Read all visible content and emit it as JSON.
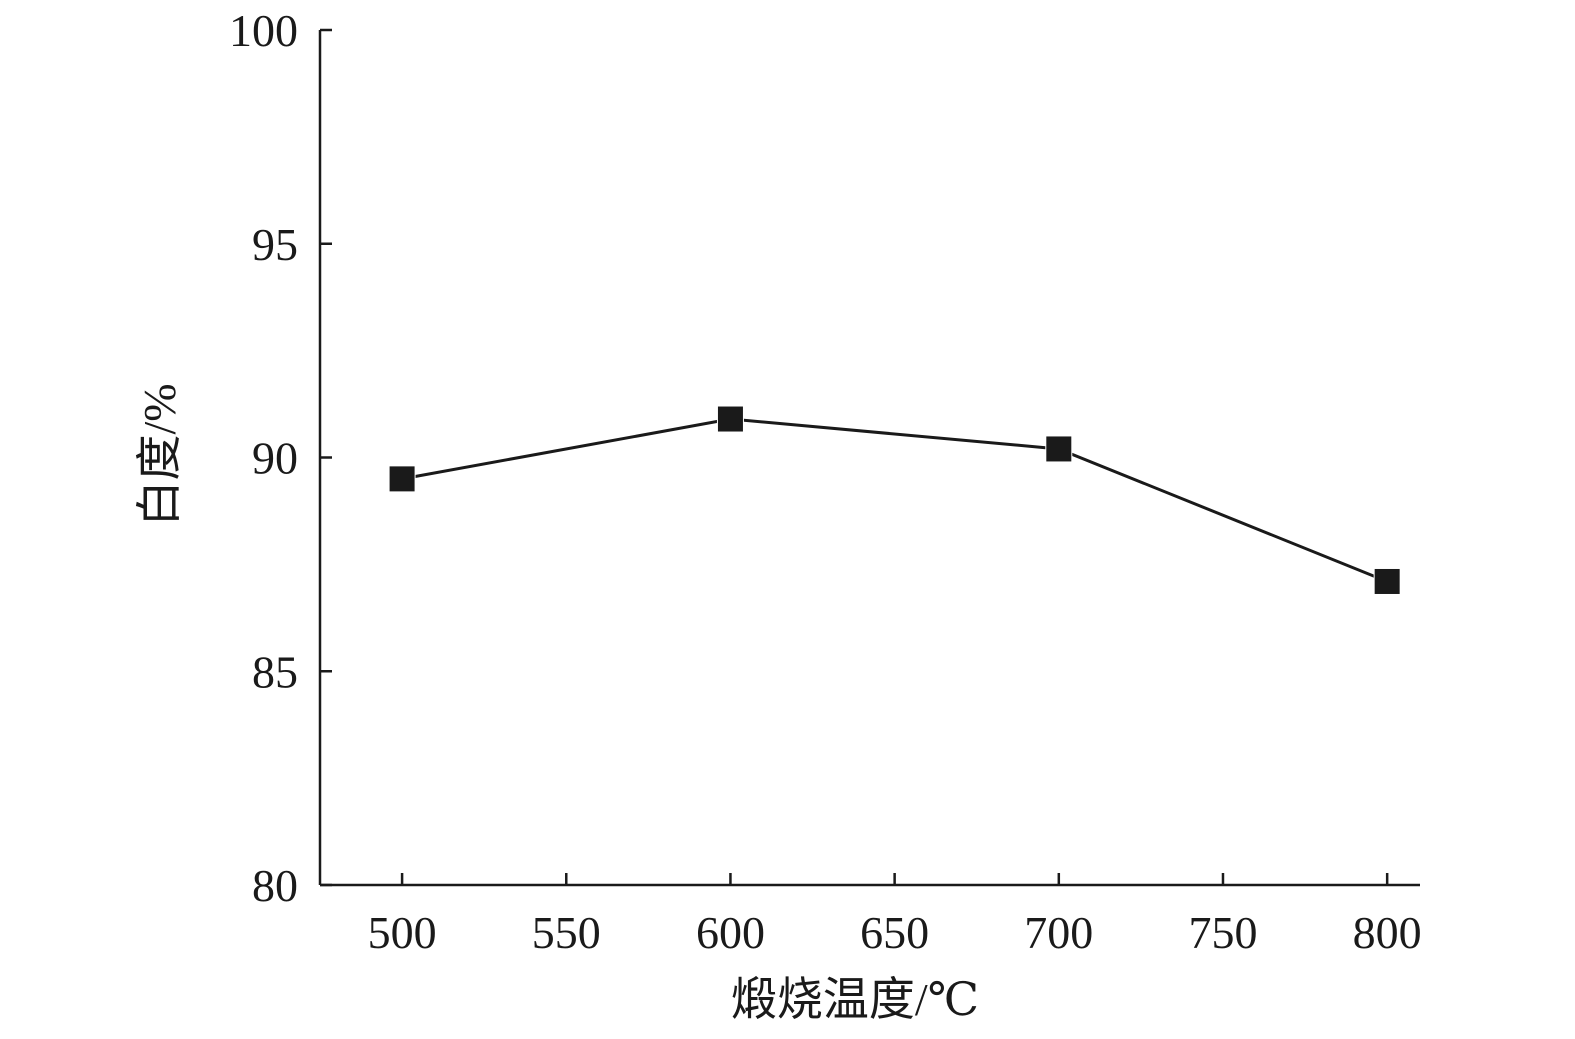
{
  "chart_data": {
    "type": "line",
    "title": "",
    "xlabel": "煅烧温度/℃",
    "ylabel": "白度/%",
    "xlim": [
      475,
      810
    ],
    "ylim": [
      80,
      100
    ],
    "x_ticks": [
      500,
      550,
      600,
      650,
      700,
      750,
      800
    ],
    "y_ticks": [
      80,
      85,
      90,
      95,
      100
    ],
    "grid": false,
    "legend": "none",
    "series": [
      {
        "marker": "square",
        "color": "#1a1a1a",
        "x": [
          500,
          600,
          700,
          800
        ],
        "y": [
          89.5,
          90.9,
          90.2,
          87.1
        ]
      }
    ]
  }
}
